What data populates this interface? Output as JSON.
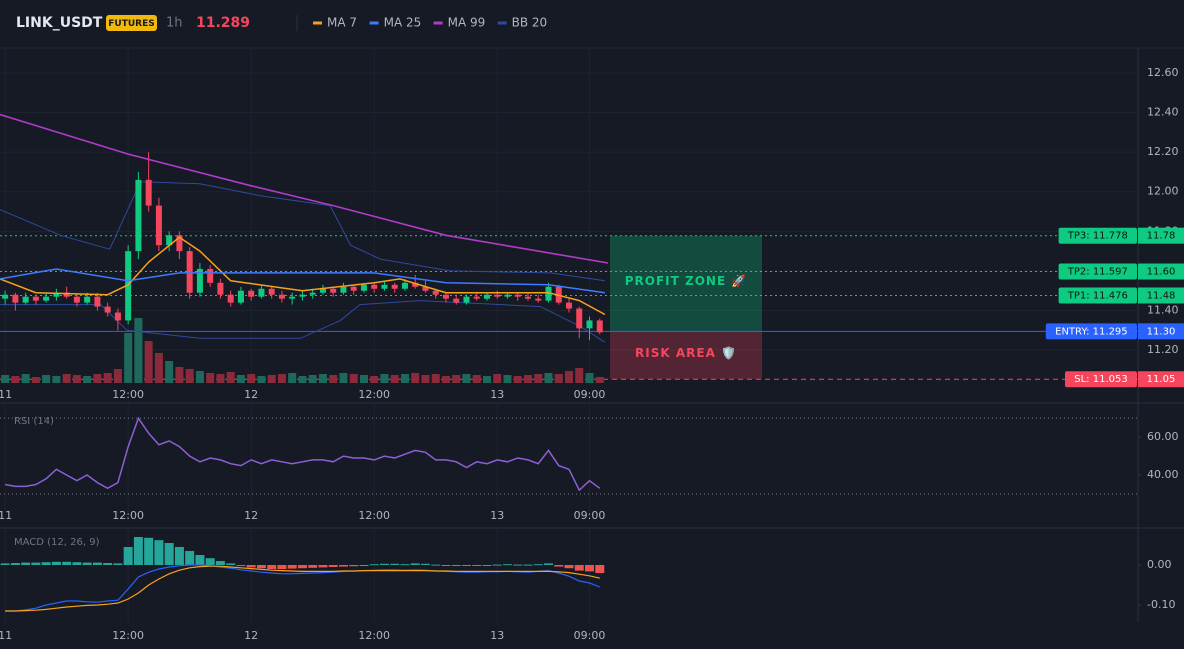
{
  "header": {
    "symbol": "LINK_USDT",
    "badge": "FUTURES",
    "interval": "1h",
    "last_price": 11.289
  },
  "chart_data": [
    {
      "type": "candlestick",
      "up_color": "#0ecb81",
      "down_color": "#f6465d",
      "volume_colors": {
        "up": "#1d6a5c",
        "down": "#8a2a3a"
      },
      "x": [
        0,
        1,
        2,
        3,
        4,
        5,
        6,
        7,
        8,
        9,
        10,
        11,
        12,
        13,
        14,
        15,
        16,
        17,
        18,
        19,
        20,
        21,
        22,
        23,
        24,
        25,
        26,
        27,
        28,
        29,
        30,
        31,
        32,
        33,
        34,
        35,
        36,
        37,
        38,
        39,
        40,
        41,
        42,
        43,
        44,
        45,
        46,
        47,
        48,
        49,
        50,
        51,
        52,
        53,
        54,
        55,
        56,
        57,
        58
      ],
      "open": [
        11.46,
        11.48,
        11.44,
        11.47,
        11.45,
        11.47,
        11.49,
        11.47,
        11.44,
        11.47,
        11.42,
        11.39,
        11.35,
        11.7,
        12.06,
        11.93,
        11.73,
        11.78,
        11.7,
        11.49,
        11.61,
        11.54,
        11.48,
        11.44,
        11.5,
        11.47,
        11.51,
        11.48,
        11.46,
        11.47,
        11.48,
        11.49,
        11.51,
        11.49,
        11.52,
        11.5,
        11.53,
        11.51,
        11.53,
        11.51,
        11.54,
        11.52,
        11.5,
        11.48,
        11.46,
        11.44,
        11.47,
        11.46,
        11.48,
        11.47,
        11.48,
        11.47,
        11.46,
        11.45,
        11.52,
        11.44,
        11.41,
        11.31,
        11.35
      ],
      "high": [
        11.5,
        11.49,
        11.49,
        11.48,
        11.49,
        11.51,
        11.52,
        11.48,
        11.49,
        11.49,
        11.44,
        11.41,
        11.73,
        12.1,
        12.2,
        11.97,
        11.8,
        11.8,
        11.72,
        11.64,
        11.63,
        11.56,
        11.5,
        11.52,
        11.51,
        11.53,
        11.52,
        11.5,
        11.49,
        11.5,
        11.51,
        11.53,
        11.52,
        11.54,
        11.53,
        11.54,
        11.54,
        11.55,
        11.54,
        11.56,
        11.58,
        11.55,
        11.51,
        11.49,
        11.48,
        11.48,
        11.49,
        11.49,
        11.5,
        11.49,
        11.49,
        11.49,
        11.48,
        11.54,
        11.53,
        11.46,
        11.42,
        11.37,
        11.36
      ],
      "low": [
        11.43,
        11.4,
        11.43,
        11.43,
        11.44,
        11.45,
        11.46,
        11.42,
        11.43,
        11.4,
        11.37,
        11.3,
        11.33,
        11.66,
        11.9,
        11.7,
        11.7,
        11.66,
        11.46,
        11.47,
        11.52,
        11.46,
        11.42,
        11.43,
        11.45,
        11.46,
        11.46,
        11.44,
        11.43,
        11.45,
        11.46,
        11.48,
        11.47,
        11.48,
        11.48,
        11.49,
        11.49,
        11.5,
        11.49,
        11.5,
        11.51,
        11.49,
        11.46,
        11.44,
        11.43,
        11.43,
        11.45,
        11.45,
        11.46,
        11.46,
        11.45,
        11.45,
        11.44,
        11.44,
        11.43,
        11.39,
        11.26,
        11.25,
        11.28
      ],
      "close": [
        11.48,
        11.44,
        11.47,
        11.45,
        11.47,
        11.49,
        11.47,
        11.44,
        11.47,
        11.42,
        11.39,
        11.35,
        11.7,
        12.06,
        11.93,
        11.73,
        11.78,
        11.7,
        11.49,
        11.61,
        11.54,
        11.48,
        11.44,
        11.5,
        11.47,
        11.51,
        11.48,
        11.46,
        11.47,
        11.48,
        11.49,
        11.51,
        11.49,
        11.52,
        11.5,
        11.53,
        11.51,
        11.53,
        11.51,
        11.54,
        11.52,
        11.5,
        11.48,
        11.46,
        11.44,
        11.47,
        11.46,
        11.48,
        11.47,
        11.48,
        11.47,
        11.46,
        11.45,
        11.52,
        11.44,
        11.41,
        11.31,
        11.35,
        11.29
      ],
      "volume": [
        8,
        7,
        9,
        6,
        8,
        7,
        9,
        8,
        7,
        9,
        10,
        14,
        50,
        65,
        42,
        30,
        22,
        16,
        14,
        12,
        10,
        9,
        11,
        8,
        9,
        7,
        8,
        9,
        10,
        7,
        8,
        9,
        8,
        10,
        9,
        8,
        7,
        9,
        8,
        9,
        10,
        8,
        9,
        7,
        8,
        9,
        8,
        7,
        9,
        8,
        7,
        8,
        9,
        10,
        9,
        12,
        15,
        10,
        6
      ],
      "series": [
        {
          "name": "MA 7",
          "color": "#f7a21b",
          "x": [
            -0.5,
            3,
            10,
            12,
            14,
            17,
            19,
            22,
            29,
            36,
            38.5,
            43,
            53,
            56,
            58.5
          ],
          "values": [
            11.56,
            11.49,
            11.48,
            11.53,
            11.645,
            11.77,
            11.7,
            11.55,
            11.5,
            11.54,
            11.56,
            11.49,
            11.49,
            11.45,
            11.38
          ]
        },
        {
          "name": "MA 25",
          "color": "#3d7bff",
          "x": [
            -0.5,
            5,
            12,
            17,
            24,
            36,
            43,
            53,
            58.5
          ],
          "values": [
            11.56,
            11.61,
            11.55,
            11.59,
            11.59,
            11.59,
            11.54,
            11.53,
            11.49
          ]
        },
        {
          "name": "MA 99",
          "color": "#b03cc8",
          "x": [
            -0.5,
            12,
            24,
            32,
            43,
            58.8
          ],
          "values": [
            12.39,
            12.19,
            12.03,
            11.93,
            11.78,
            11.64
          ]
        }
      ],
      "bands": {
        "name": "BB 20",
        "color": "#2e4a9e",
        "upper": {
          "x": [
            -0.5,
            5.4,
            10.2,
            13.2,
            19,
            24.9,
            31.7,
            33.7,
            36.6,
            43.4,
            53.2,
            58.5
          ],
          "values": [
            11.91,
            11.78,
            11.71,
            12.05,
            12.04,
            11.98,
            11.93,
            11.73,
            11.66,
            11.6,
            11.59,
            11.55
          ]
        },
        "lower": {
          "x": [
            -0.5,
            9.3,
            11.9,
            19,
            28.8,
            32.7,
            34.6,
            40.5,
            52.2,
            56.1,
            58.5
          ],
          "values": [
            11.43,
            11.43,
            11.3,
            11.26,
            11.26,
            11.35,
            11.43,
            11.45,
            11.42,
            11.32,
            11.24
          ]
        }
      },
      "levels": [
        {
          "value": 11.778,
          "label": "TP3: 11.778",
          "axis_label": "11.78",
          "color": "#0ecb81",
          "style": "dotted"
        },
        {
          "value": 11.597,
          "label": "TP2: 11.597",
          "axis_label": "11.60",
          "color": "#0ecb81",
          "style": "dotted"
        },
        {
          "value": 11.476,
          "label": "TP1: 11.476",
          "axis_label": "11.48",
          "color": "#0ecb81",
          "style": "dotted"
        },
        {
          "value": 11.295,
          "label": "ENTRY: 11.295",
          "axis_label": "11.30",
          "color": "#2962ff",
          "style": "solid"
        },
        {
          "value": 11.053,
          "label": "SL: 11.053",
          "axis_label": "11.05",
          "color": "#f6465d",
          "style": "dashed"
        }
      ],
      "zones": [
        {
          "label": "PROFIT ZONE 🚀",
          "color": "#0ecb81"
        },
        {
          "label": "RISK AREA 🛡️",
          "color": "#f6465d"
        }
      ],
      "xlim": [
        -0.5,
        110.5
      ],
      "xticks": [
        {
          "value": 0,
          "label": "11"
        },
        {
          "value": 12,
          "label": "12:00"
        },
        {
          "value": 24,
          "label": "12"
        },
        {
          "value": 36,
          "label": "12:00"
        },
        {
          "value": 48,
          "label": "13"
        },
        {
          "value": 57,
          "label": "09:00"
        }
      ],
      "ylim": [
        11.034,
        12.726
      ],
      "yticks": [
        {
          "value": 11.2,
          "label": "11.20"
        },
        {
          "value": 11.4,
          "label": "11.40"
        },
        {
          "value": 11.6,
          "label": "11.60"
        },
        {
          "value": 11.8,
          "label": "11.80"
        },
        {
          "value": 12,
          "label": "12.00"
        },
        {
          "value": 12.2,
          "label": "12.20"
        },
        {
          "value": 12.4,
          "label": "12.40"
        },
        {
          "value": 12.6,
          "label": "12.60"
        }
      ],
      "grid": true
    },
    {
      "type": "line",
      "label": "RSI (14)",
      "color": "#8e5fd6",
      "values": [
        35,
        34,
        34,
        35,
        38,
        43,
        40,
        37,
        40,
        36,
        33,
        36,
        55,
        70,
        62,
        56,
        58,
        55,
        50,
        47,
        49,
        48,
        46,
        45,
        48,
        46,
        48,
        47,
        46,
        47,
        48,
        48,
        47,
        50,
        49,
        49,
        48,
        50,
        49,
        51,
        53,
        52,
        48,
        48,
        47,
        44,
        47,
        46,
        48,
        47,
        49,
        48,
        46,
        53,
        45,
        43,
        32,
        37,
        33
      ],
      "ylim": [
        20.5,
        78
      ],
      "yticks": [
        {
          "value": 40,
          "label": "40.00"
        },
        {
          "value": 60,
          "label": "60.00"
        }
      ],
      "bands": [
        30,
        70
      ]
    },
    {
      "type": "macd",
      "label": "MACD (12, 26, 9)",
      "positive_color": "#26a69a",
      "negative_color": "#ef5350",
      "histogram": [
        0.004,
        0.005,
        0.006,
        0.006,
        0.007,
        0.008,
        0.008,
        0.007,
        0.006,
        0.006,
        0.005,
        0.004,
        0.045,
        0.07,
        0.068,
        0.062,
        0.055,
        0.045,
        0.035,
        0.025,
        0.017,
        0.01,
        0.004,
        -0.002,
        -0.006,
        -0.008,
        -0.01,
        -0.01,
        -0.009,
        -0.008,
        -0.007,
        -0.006,
        -0.005,
        -0.004,
        -0.003,
        -0.002,
        0.002,
        0.003,
        0.003,
        0.002,
        0.004,
        0.003,
        0.001,
        -0.001,
        -0.002,
        -0.002,
        -0.001,
        -0.001,
        0.001,
        0.002,
        0.001,
        0.001,
        0.002,
        0.004,
        -0.004,
        -0.008,
        -0.014,
        -0.016,
        -0.02
      ],
      "series": [
        {
          "color": "#2962ff",
          "values": [
            -0.115,
            -0.115,
            -0.112,
            -0.108,
            -0.1,
            -0.095,
            -0.09,
            -0.09,
            -0.092,
            -0.093,
            -0.09,
            -0.088,
            -0.06,
            -0.03,
            -0.018,
            -0.01,
            -0.005,
            -0.002,
            0,
            0,
            -0.002,
            -0.005,
            -0.008,
            -0.012,
            -0.015,
            -0.018,
            -0.02,
            -0.022,
            -0.022,
            -0.021,
            -0.02,
            -0.019,
            -0.018,
            -0.016,
            -0.015,
            -0.014,
            -0.013,
            -0.012,
            -0.012,
            -0.013,
            -0.012,
            -0.013,
            -0.015,
            -0.016,
            -0.017,
            -0.018,
            -0.018,
            -0.017,
            -0.017,
            -0.016,
            -0.017,
            -0.018,
            -0.016,
            -0.014,
            -0.02,
            -0.028,
            -0.04,
            -0.045,
            -0.055
          ]
        },
        {
          "color": "#f7a21b",
          "values": [
            -0.115,
            -0.115,
            -0.114,
            -0.113,
            -0.111,
            -0.108,
            -0.105,
            -0.103,
            -0.101,
            -0.1,
            -0.098,
            -0.095,
            -0.085,
            -0.07,
            -0.05,
            -0.035,
            -0.022,
            -0.013,
            -0.007,
            -0.004,
            -0.003,
            -0.003,
            -0.005,
            -0.007,
            -0.009,
            -0.011,
            -0.013,
            -0.014,
            -0.015,
            -0.016,
            -0.016,
            -0.016,
            -0.016,
            -0.015,
            -0.015,
            -0.014,
            -0.014,
            -0.014,
            -0.014,
            -0.014,
            -0.014,
            -0.014,
            -0.015,
            -0.015,
            -0.016,
            -0.016,
            -0.016,
            -0.016,
            -0.016,
            -0.016,
            -0.016,
            -0.016,
            -0.016,
            -0.016,
            -0.017,
            -0.019,
            -0.023,
            -0.027,
            -0.033
          ]
        }
      ],
      "ylim": [
        -0.1425,
        0.0925
      ],
      "yticks": [
        {
          "value": -0.1,
          "label": "-0.10"
        },
        {
          "value": 0,
          "label": "0.00"
        }
      ]
    }
  ]
}
